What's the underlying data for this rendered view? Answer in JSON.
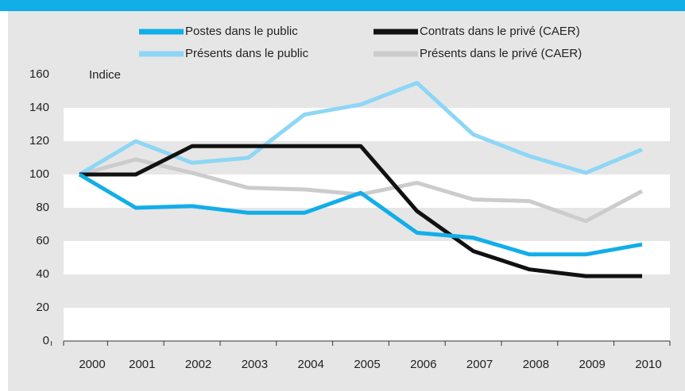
{
  "chart_data": {
    "type": "line",
    "y_label": "Indice",
    "categories": [
      "2000",
      "2001",
      "2002",
      "2003",
      "2004",
      "2005",
      "2006",
      "2007",
      "2008",
      "2009",
      "2010"
    ],
    "series": [
      {
        "name": "Postes dans le public",
        "color": "#12aee8",
        "values": [
          100,
          80,
          81,
          77,
          77,
          89,
          65,
          62,
          52,
          52,
          58
        ]
      },
      {
        "name": "Contrats dans le privé (CAER)",
        "color": "#111111",
        "values": [
          100,
          100,
          117,
          117,
          117,
          117,
          78,
          54,
          43,
          39,
          39
        ]
      },
      {
        "name": "Présents dans le public",
        "color": "#8ed6f5",
        "values": [
          100,
          120,
          107,
          110,
          136,
          142,
          155,
          124,
          111,
          101,
          115
        ]
      },
      {
        "name": "Présents dans le privé (CAER)",
        "color": "#cccccc",
        "values": [
          100,
          109,
          101,
          92,
          91,
          88,
          95,
          85,
          84,
          72,
          90
        ]
      }
    ],
    "ylim": [
      0,
      160
    ],
    "yticks": [
      0,
      20,
      40,
      60,
      80,
      100,
      120,
      140,
      160
    ],
    "grid": true
  }
}
